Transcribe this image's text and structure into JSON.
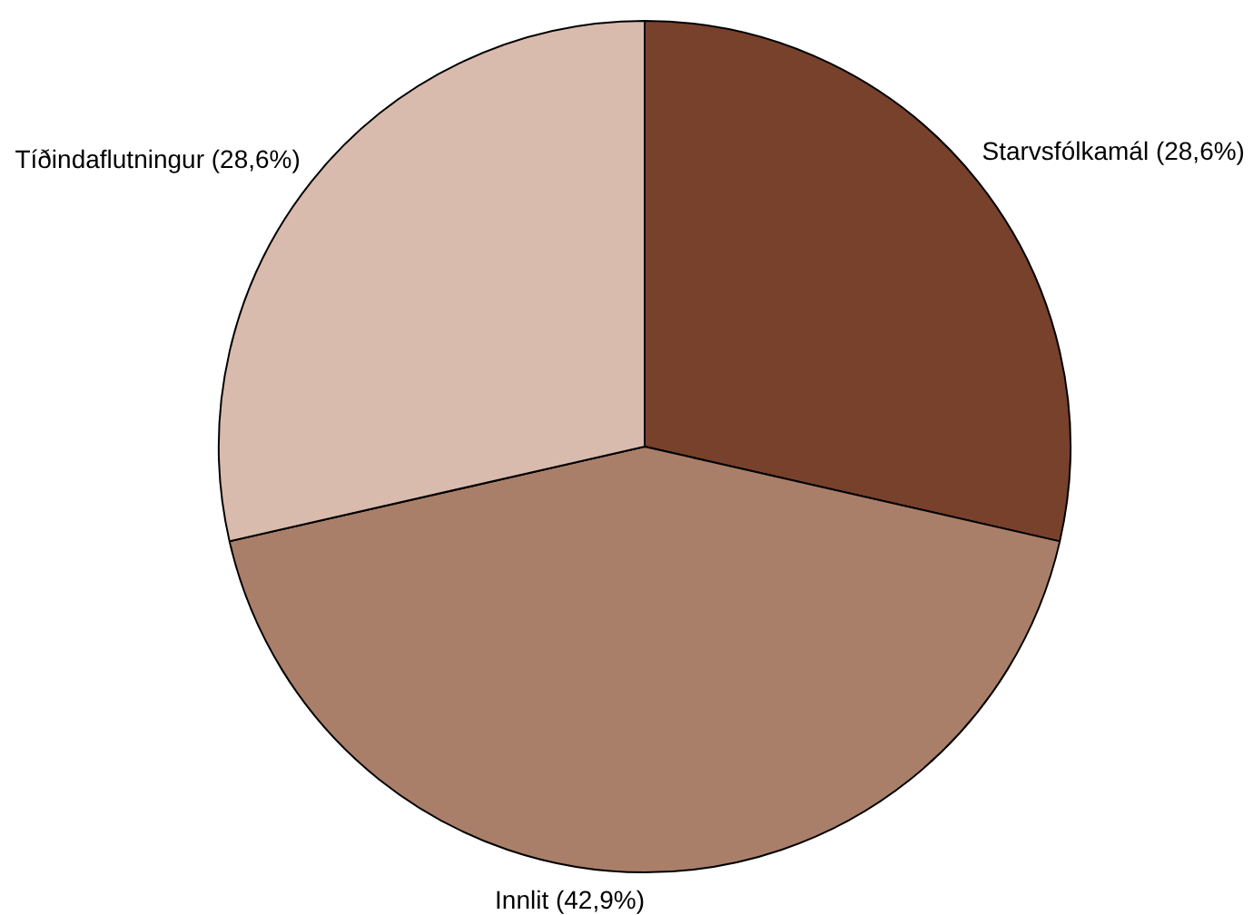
{
  "chart_data": {
    "type": "pie",
    "categories": [
      "Starvsfólkamál",
      "Innlit",
      "Tíðindaflutningur"
    ],
    "values": [
      28.6,
      42.9,
      28.6
    ],
    "value_labels": [
      "(28,6%)",
      "(42,9%)",
      "(28,6%)"
    ],
    "colors": [
      "#77412c",
      "#aa7f69",
      "#d9bbad"
    ],
    "legend": false
  }
}
